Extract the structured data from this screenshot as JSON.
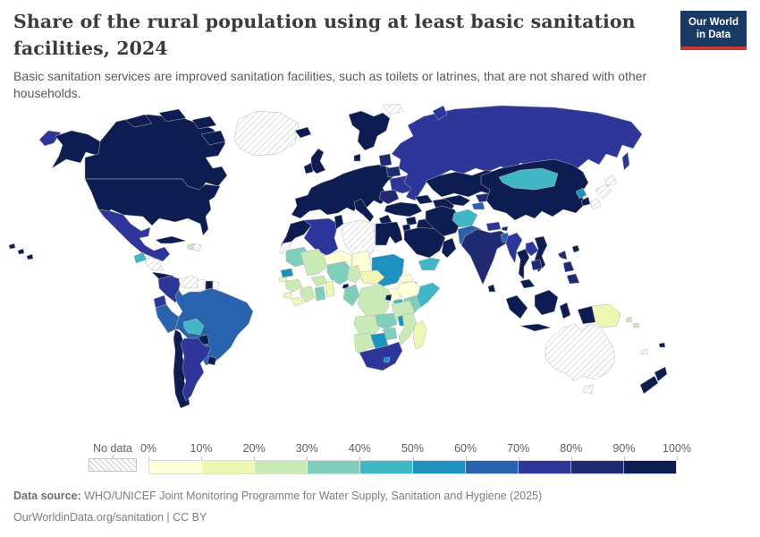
{
  "header": {
    "title": "Share of the rural population using at least basic sanitation facilities, 2024",
    "subtitle": "Basic sanitation services are improved sanitation facilities, such as toilets or latrines, that are not shared with other households.",
    "logo": {
      "line1": "Our World",
      "line2": "in Data",
      "bg_color": "#1a3a66",
      "accent_color": "#c83932"
    }
  },
  "legend": {
    "no_data_label": "No data",
    "ticks": [
      "0%",
      "10%",
      "20%",
      "30%",
      "40%",
      "50%",
      "60%",
      "70%",
      "80%",
      "90%",
      "100%"
    ]
  },
  "footer": {
    "source_label": "Data source:",
    "source_text": " WHO/UNICEF Joint Monitoring Programme for Water Supply, Sanitation and Hygiene (2025)",
    "note_text": "OurWorldinData.org/sanitation | CC BY"
  },
  "chart_data": {
    "type": "heatmap",
    "subtype": "choropleth-world-map",
    "title": "Share of the rural population using at least basic sanitation facilities, 2024",
    "unit": "% of rural population using at least basic sanitation",
    "legend_position": "bottom",
    "bin_labels": [
      "0-10%",
      "10-20%",
      "20-30%",
      "30-40%",
      "40-50%",
      "50-60%",
      "60-70%",
      "70-80%",
      "80-90%",
      "90-100%"
    ],
    "bin_colors": [
      "#ffffd9",
      "#eef8b2",
      "#c9e9b5",
      "#7fcdbb",
      "#41b6c4",
      "#1d91c0",
      "#2a63ad",
      "#2e3799",
      "#1f2a72",
      "#0e1d51"
    ],
    "no_data": {
      "label": "No data",
      "pattern": "diagonal-hatch"
    },
    "border_color": "#b5b5b5",
    "country_bins": {
      "canada": 10,
      "usa": 10,
      "hawaii": 10,
      "greenland": "nodata",
      "russia-east": 8,
      "mexico": 8,
      "guatemala": 5,
      "honduras-nicaragua": "nodata",
      "costa-rica-panama": 10,
      "cuba": 10,
      "haiti": 3,
      "dominican-republic": "nodata",
      "colombia": 8,
      "venezuela": "nodata",
      "guyana": "blank",
      "suriname": 10,
      "french-guiana": "blank",
      "ecuador": 8,
      "peru": 7,
      "brazil": 7,
      "bolivia": 5,
      "paraguay": 10,
      "chile": 10,
      "argentina": 8,
      "uruguay": 10,
      "iceland": 10,
      "united-kingdom": 10,
      "ireland": 10,
      "scandinavia": 10,
      "denmark": 10,
      "svalbard": "nodata",
      "europe-mainland": 10,
      "italy": 10,
      "greece": 10,
      "baltics": 9,
      "belarus": 9,
      "ukraine": 8,
      "romania-bulgaria": 9,
      "russia": 8,
      "kazakhstan": 10,
      "uzbekistan": 10,
      "turkmenistan": 10,
      "kyrgyzstan": 9,
      "tajikistan": 7,
      "caucasus": 10,
      "turkey": 10,
      "syria": 10,
      "iraq": 10,
      "jordan-israel": 10,
      "saudi-arabia": 10,
      "yemen": 5,
      "oman": 10,
      "iran": 10,
      "afghanistan": 5,
      "pakistan": 7,
      "india": 9,
      "nepal": 8,
      "bhutan": 9,
      "bangladesh": 7,
      "sri-lanka": 10,
      "myanmar": 8,
      "thailand": 10,
      "laos": 8,
      "vietnam": 10,
      "cambodia": 9,
      "malaysia": 10,
      "china": 10,
      "mongolia": 5,
      "north-korea": 6,
      "south-korea": 10,
      "japan": "nodata",
      "taiwan": 10,
      "philippines": 9,
      "indonesia": 10,
      "papua-new-guinea": 2,
      "timor-leste": 8,
      "solomon-islands": 3,
      "fiji": 10,
      "new-caledonia": "nodata",
      "australia": "nodata",
      "new-zealand": 10,
      "morocco": 10,
      "western-sahara": "nodata",
      "algeria": 8,
      "tunisia": 10,
      "libya": "nodata",
      "egypt": 10,
      "mauritania": 4,
      "mali": 3,
      "niger": 1,
      "chad": 1,
      "sudan": 6,
      "eritrea": 1,
      "djibouti": 6,
      "ethiopia": 1,
      "somalia": 5,
      "senegal": 6,
      "guinea-bissau": 2,
      "guinea": 3,
      "sierra-leone": 2,
      "liberia": 2,
      "ivory-coast": 3,
      "burkina-faso": 3,
      "ghana": 4,
      "togo-benin": 2,
      "nigeria": 4,
      "cameroon": 3,
      "central-african-republic": 2,
      "south-sudan": 1,
      "uganda": 5,
      "kenya": 4,
      "equatorial-guinea": 10,
      "gabon-congo": 4,
      "dr-congo": 3,
      "rwanda-burundi": 10,
      "tanzania": 3,
      "angola": 3,
      "zambia": 4,
      "malawi": 6,
      "mozambique": 3,
      "zimbabwe": 4,
      "botswana": 6,
      "namibia": 3,
      "south-africa": 8,
      "lesotho": 6,
      "madagascar": 2
    }
  }
}
